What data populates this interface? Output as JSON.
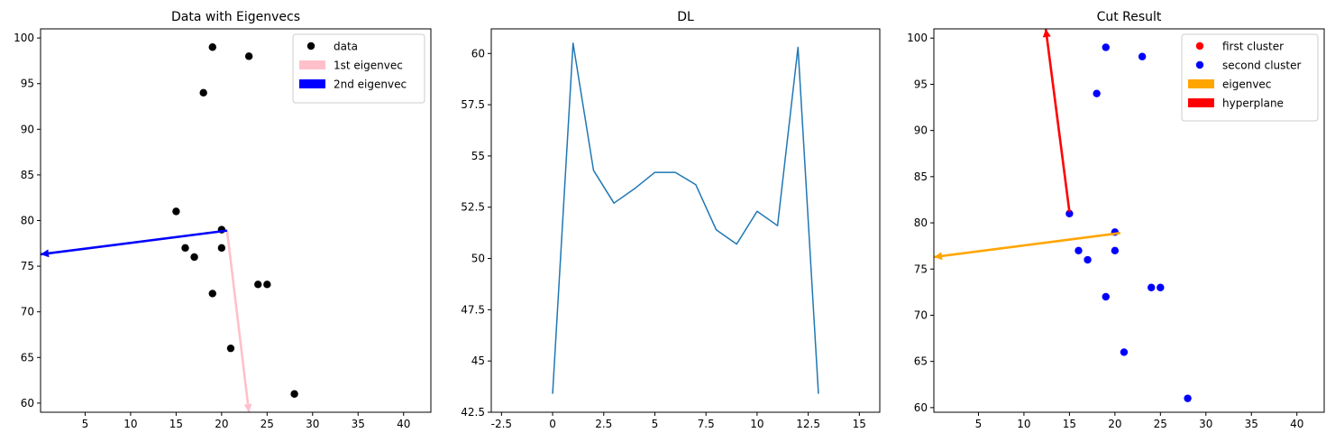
{
  "chart_data": [
    {
      "type": "scatter",
      "title": "Data with Eigenvecs",
      "xlabel": "",
      "ylabel": "",
      "xlim": [
        0.1,
        43.0
      ],
      "ylim": [
        59.0,
        101.0
      ],
      "xticks": [
        5,
        10,
        15,
        20,
        25,
        30,
        35,
        40
      ],
      "yticks": [
        60,
        65,
        70,
        75,
        80,
        85,
        90,
        95,
        100
      ],
      "grid": false,
      "legend_position": "top-right",
      "series": [
        {
          "name": "data",
          "kind": "points",
          "color": "#000000",
          "points": [
            [
              19,
              99
            ],
            [
              23,
              98
            ],
            [
              18,
              94
            ],
            [
              15,
              81
            ],
            [
              20,
              79
            ],
            [
              16,
              77
            ],
            [
              20,
              77
            ],
            [
              17,
              76
            ],
            [
              24,
              73
            ],
            [
              25,
              73
            ],
            [
              19,
              72
            ],
            [
              21,
              66
            ],
            [
              28,
              61
            ]
          ]
        },
        {
          "name": "1st eigenvec",
          "kind": "arrow",
          "color": "#ffc0cb",
          "from": [
            20.6,
            78.9
          ],
          "to": [
            23.0,
            59.0
          ]
        },
        {
          "name": "2nd eigenvec",
          "kind": "arrow",
          "color": "#0000ff",
          "from": [
            20.6,
            78.9
          ],
          "to": [
            0.1,
            76.3
          ]
        }
      ]
    },
    {
      "type": "line",
      "title": "DL",
      "xlabel": "",
      "ylabel": "",
      "xlim": [
        -3.0,
        16.0
      ],
      "ylim": [
        42.5,
        61.2
      ],
      "xticks": [
        -2.5,
        0.0,
        2.5,
        5.0,
        7.5,
        10.0,
        12.5,
        15.0
      ],
      "yticks": [
        42.5,
        45.0,
        47.5,
        50.0,
        52.5,
        55.0,
        57.5,
        60.0
      ],
      "grid": false,
      "series": [
        {
          "color": "#1f77b4",
          "x": [
            0,
            1,
            2,
            3,
            4,
            5,
            6,
            7,
            8,
            9,
            10,
            11,
            12,
            13
          ],
          "y": [
            43.4,
            60.5,
            54.3,
            52.7,
            53.4,
            54.2,
            54.2,
            53.6,
            51.4,
            50.7,
            52.3,
            51.6,
            60.3,
            43.4
          ]
        }
      ]
    },
    {
      "type": "scatter",
      "title": "Cut Result",
      "xlabel": "",
      "ylabel": "",
      "xlim": [
        0.1,
        43.0
      ],
      "ylim": [
        59.5,
        101.0
      ],
      "xticks": [
        5,
        10,
        15,
        20,
        25,
        30,
        35,
        40
      ],
      "yticks": [
        60,
        65,
        70,
        75,
        80,
        85,
        90,
        95,
        100
      ],
      "grid": false,
      "legend_position": "top-right",
      "series": [
        {
          "name": "first cluster",
          "kind": "points",
          "color": "#ff0000",
          "points": []
        },
        {
          "name": "second cluster",
          "kind": "points",
          "color": "#0000ff",
          "points": [
            [
              19,
              99
            ],
            [
              23,
              98
            ],
            [
              18,
              94
            ],
            [
              15,
              81
            ],
            [
              20,
              79
            ],
            [
              16,
              77
            ],
            [
              20,
              77
            ],
            [
              17,
              76
            ],
            [
              24,
              73
            ],
            [
              25,
              73
            ],
            [
              19,
              72
            ],
            [
              21,
              66
            ],
            [
              28,
              61
            ]
          ]
        },
        {
          "name": "eigenvec",
          "kind": "arrow",
          "color": "#ffa500",
          "from": [
            20.6,
            78.9
          ],
          "to": [
            0.1,
            76.3
          ]
        },
        {
          "name": "hyperplane",
          "kind": "arrow",
          "color": "#ff0000",
          "from": [
            15.0,
            81.2
          ],
          "to": [
            12.4,
            101.0
          ]
        }
      ]
    }
  ]
}
